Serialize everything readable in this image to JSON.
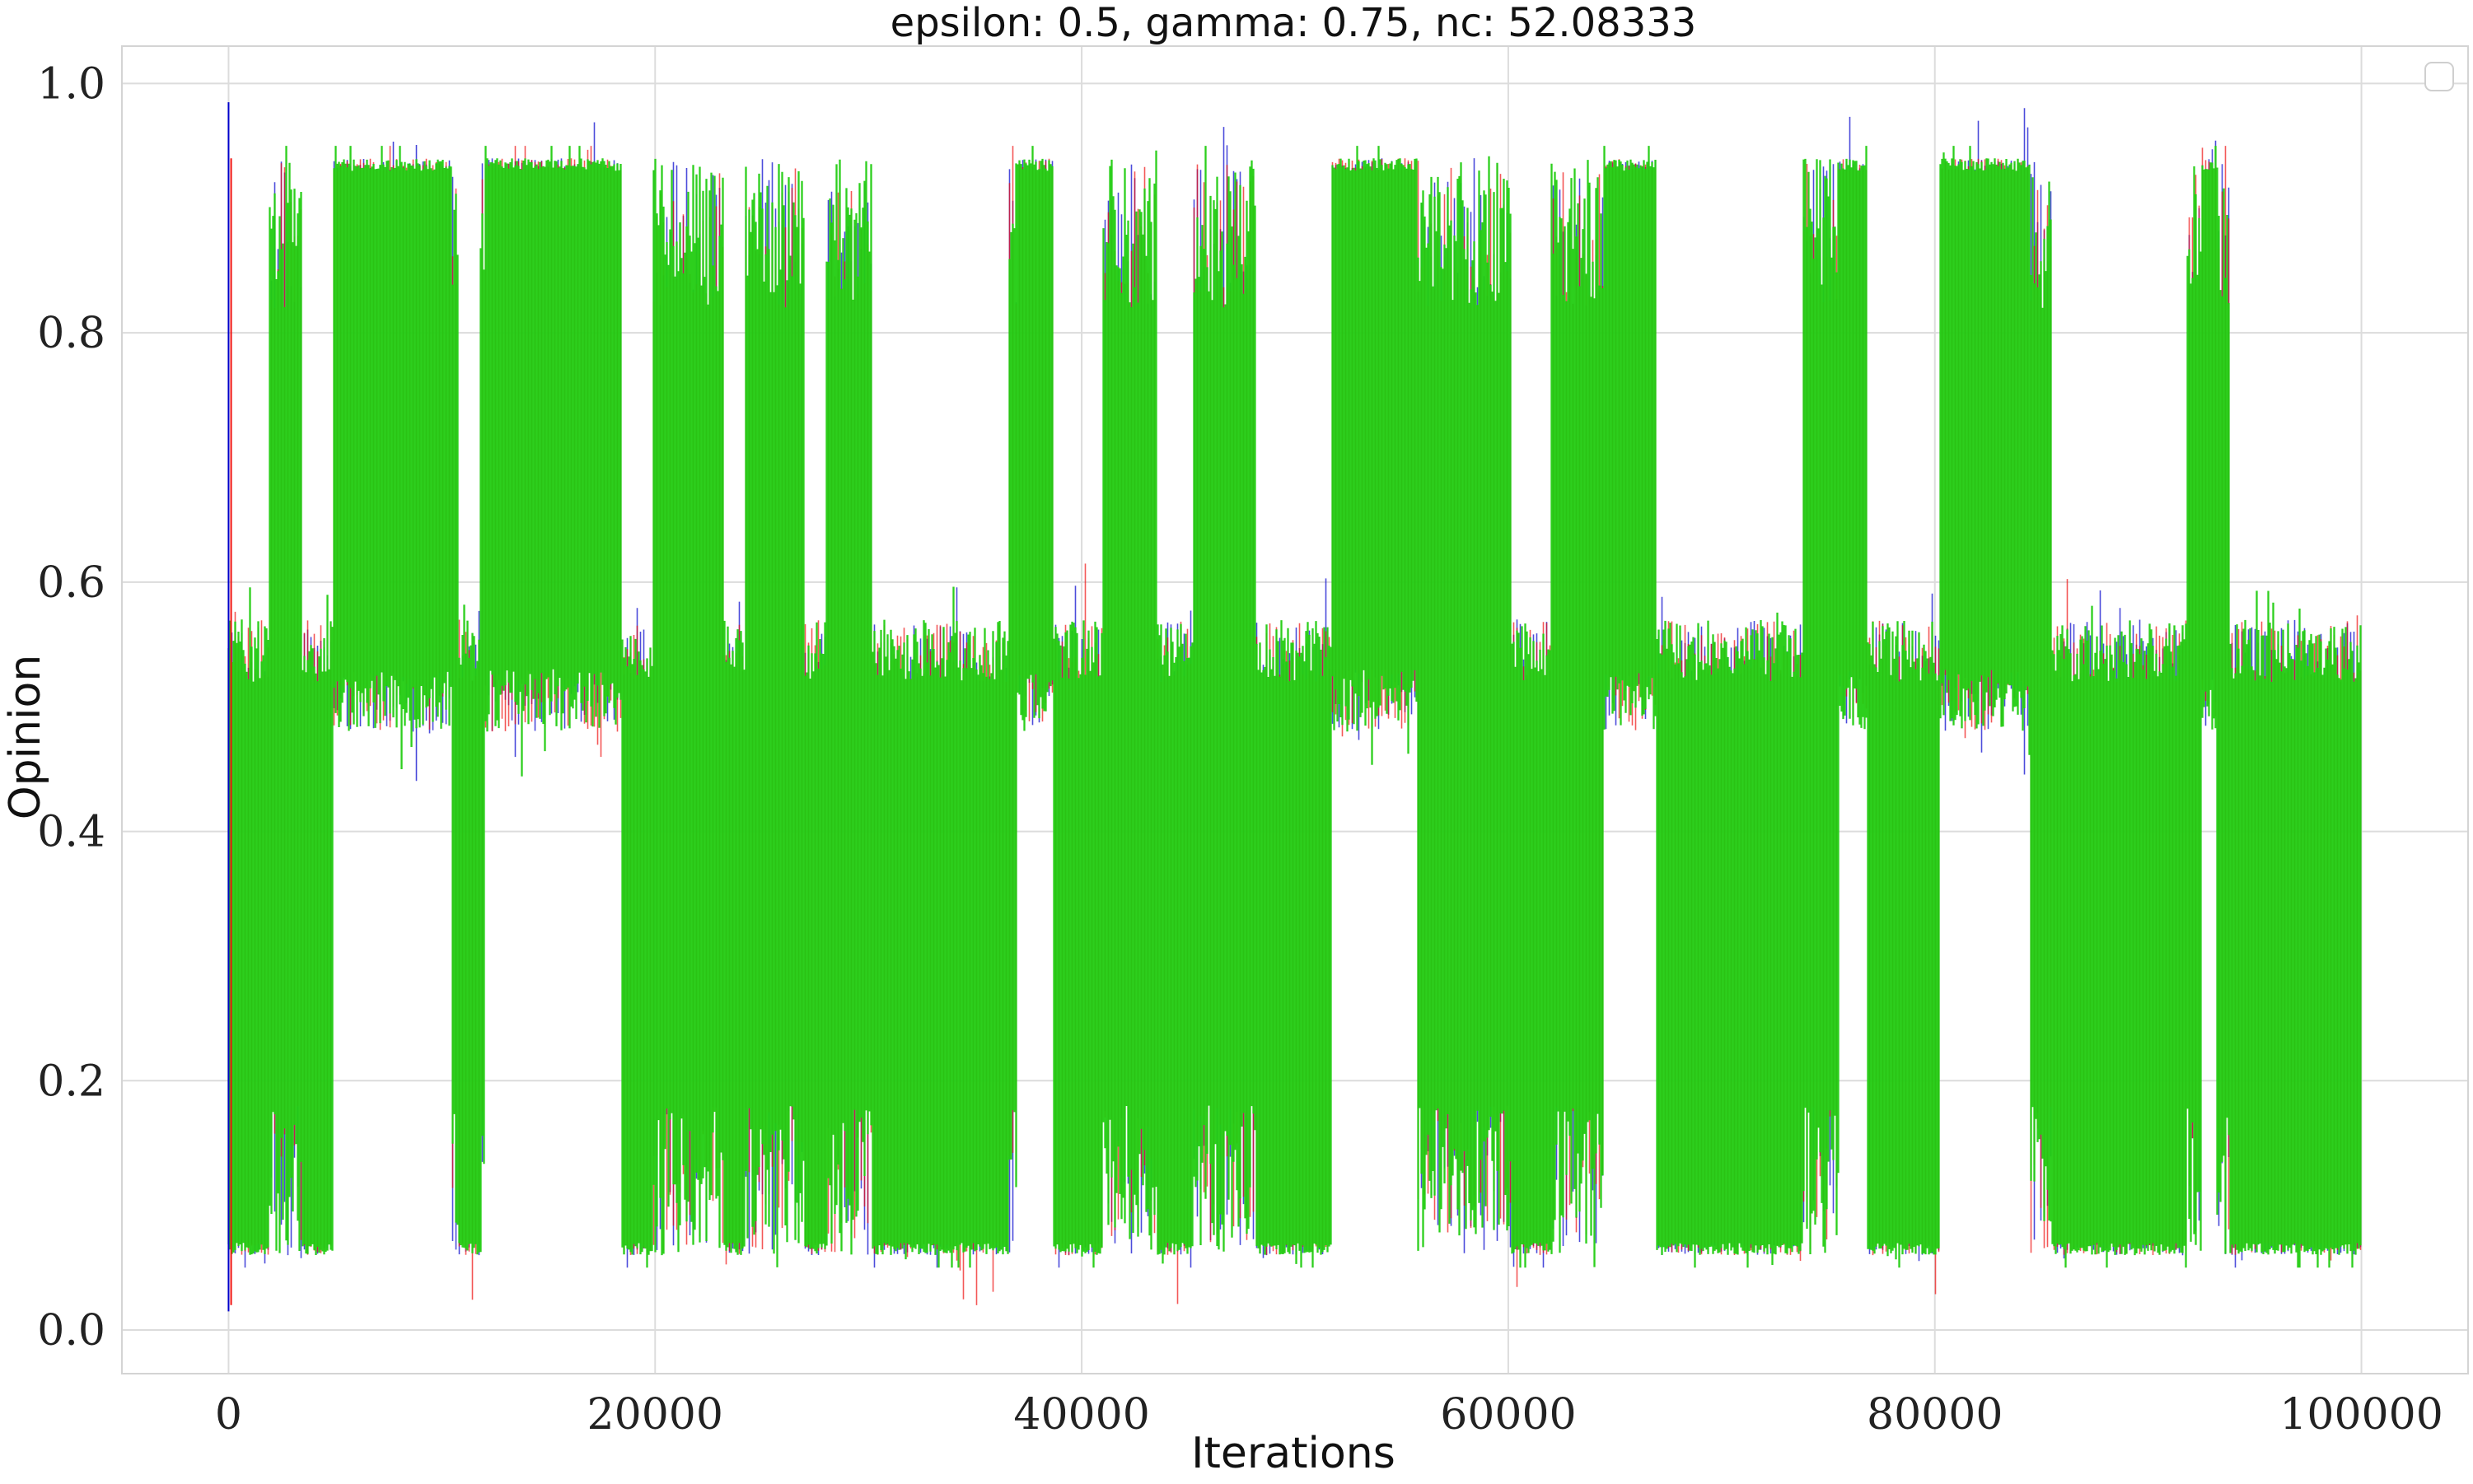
{
  "chart_data": {
    "type": "line",
    "title": "epsilon: 0.5, gamma: 0.75, nc: 52.08333",
    "xlabel": "Iterations",
    "ylabel": "Opinion",
    "xlim": [
      -5000,
      105000
    ],
    "ylim": [
      -0.035,
      1.03
    ],
    "xticks": [
      0,
      20000,
      40000,
      60000,
      80000,
      100000
    ],
    "xtick_labels": [
      "0",
      "20000",
      "40000",
      "60000",
      "80000",
      "100000"
    ],
    "yticks": [
      0.0,
      0.2,
      0.4,
      0.6,
      0.8,
      1.0
    ],
    "ytick_labels": [
      "0.0",
      "0.2",
      "0.4",
      "0.6",
      "0.8",
      "1.0"
    ],
    "grid": true,
    "legend": {
      "position": "top-right",
      "entries": []
    },
    "series": [
      {
        "color": "#0000cc",
        "x_range": [
          0,
          100000
        ],
        "y_envelope": [
          0.05,
          0.985
        ]
      },
      {
        "color": "#ee1111",
        "x_range": [
          0,
          100000
        ],
        "y_envelope": [
          0.015,
          0.95
        ]
      },
      {
        "color": "#22cc11",
        "x_range": [
          0,
          100000
        ],
        "y_envelope": [
          0.05,
          0.95
        ]
      }
    ],
    "regime_high": [
      [
        4700,
        10500
      ],
      [
        12000,
        18700
      ],
      [
        37000,
        39500
      ],
      [
        50500,
        55700
      ],
      [
        64500,
        67000
      ],
      [
        75500,
        77800
      ],
      [
        79500,
        84500
      ],
      [
        92500,
        93200
      ],
      [
        94700,
        97000
      ]
    ],
    "regime_low": [
      [
        0,
        1900
      ],
      [
        3400,
        4900
      ],
      [
        10800,
        11800
      ],
      [
        18400,
        19900
      ],
      [
        23200,
        24200
      ],
      [
        27000,
        28000
      ],
      [
        30200,
        36600
      ],
      [
        38700,
        41000
      ],
      [
        43500,
        45200
      ],
      [
        48200,
        51700
      ],
      [
        60100,
        62000
      ],
      [
        66900,
        73800
      ],
      [
        76800,
        80200
      ],
      [
        85500,
        91800
      ],
      [
        93800,
        100000
      ]
    ]
  }
}
